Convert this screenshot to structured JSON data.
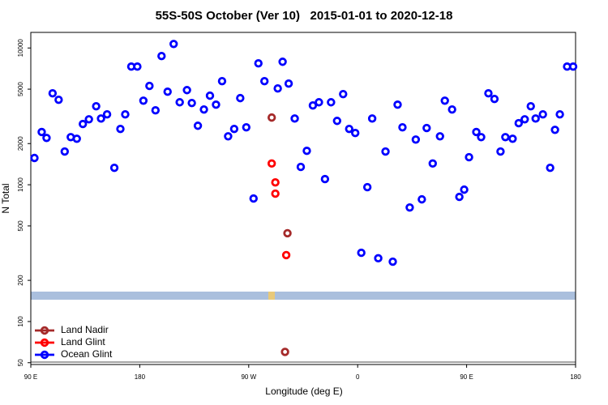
{
  "chart_data": {
    "type": "scatter",
    "title": "55S-50S October (Ver 10)   2015-01-01 to 2020-12-18",
    "x_label": "Longitude (deg E)",
    "y_label": "N Total",
    "xlim": [
      90,
      540
    ],
    "xticks": [
      {
        "value": 90,
        "label": "90 E"
      },
      180,
      {
        "value": 270,
        "label": "90 W"
      },
      {
        "value": 360,
        "label": "0"
      },
      {
        "value": 450,
        "label": "90 E"
      },
      {
        "value": 540,
        "label": "180"
      }
    ],
    "ylim": [
      48.5,
      13000
    ],
    "yticks": [
      50,
      100,
      200,
      500,
      1000,
      2000,
      5000,
      10000
    ],
    "log_y": true,
    "legend": "lower left",
    "series": [
      {
        "name": "Land Nadir",
        "color": "#a52a2a",
        "x": [
          289,
          302,
          300
        ],
        "values": [
          3100,
          442,
          60
        ]
      },
      {
        "name": "Land Glint",
        "color": "#ff0000",
        "x": [
          289,
          292,
          292,
          301
        ],
        "values": [
          1430,
          1040,
          861,
          306
        ]
      },
      {
        "name": "Ocean Glint",
        "color": "#0000ff",
        "x": [
          93,
          99,
          103,
          108,
          113,
          118,
          123,
          128,
          133,
          138,
          144,
          148,
          153,
          159,
          164,
          168,
          173,
          178,
          183,
          188,
          193,
          198,
          203,
          208,
          213,
          219,
          223,
          228,
          233,
          238,
          243,
          248,
          253,
          258,
          263,
          268,
          274,
          278,
          283,
          294,
          298,
          303,
          308,
          313,
          318,
          323,
          328,
          333,
          338,
          343,
          348,
          353,
          358,
          363,
          368,
          372,
          377,
          383,
          389,
          393,
          397,
          403,
          408,
          413,
          417,
          422,
          428,
          432,
          438,
          444,
          448,
          452,
          458,
          462,
          468,
          473,
          478,
          482,
          488,
          493,
          498,
          503,
          507,
          513,
          519,
          523,
          527,
          533,
          538
        ],
        "values": [
          1570,
          2430,
          2200,
          4660,
          4180,
          1750,
          2230,
          2170,
          2780,
          3010,
          3750,
          3050,
          3270,
          1330,
          2560,
          3270,
          7310,
          7310,
          4120,
          5280,
          3500,
          8730,
          4790,
          10700,
          4010,
          4920,
          3960,
          2700,
          3550,
          4480,
          3850,
          5720,
          2260,
          2560,
          4300,
          2630,
          793,
          7720,
          5720,
          5060,
          7930,
          5490,
          3050,
          1350,
          1770,
          3800,
          4010,
          1100,
          4010,
          2930,
          4600,
          2560,
          2390,
          318,
          960,
          3050,
          290,
          1750,
          274,
          3850,
          2630,
          682,
          2140,
          782,
          2600,
          1430,
          2260,
          4120,
          3550,
          815,
          921,
          1590,
          2430,
          2230,
          4660,
          4240,
          1750,
          2230,
          2170,
          2820,
          3010,
          3750,
          3050,
          3270,
          1330,
          2520,
          3270,
          7310,
          7310
        ]
      }
    ]
  }
}
